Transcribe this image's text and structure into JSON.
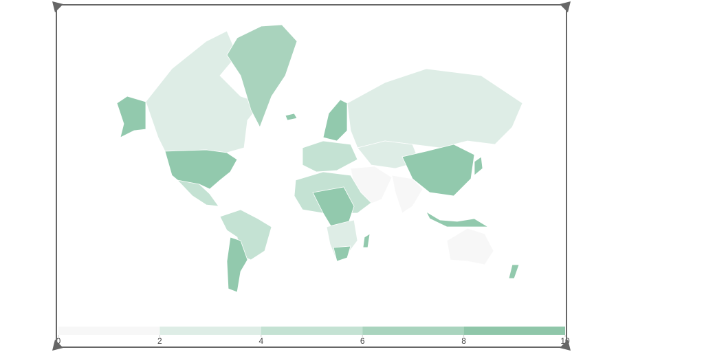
{
  "legend": {
    "ticks": [
      0,
      2,
      4,
      6,
      8,
      10
    ],
    "colors": [
      "#f7f7f7",
      "#deede6",
      "#c4e2d3",
      "#a9d4be",
      "#8fc6a9"
    ]
  }
}
